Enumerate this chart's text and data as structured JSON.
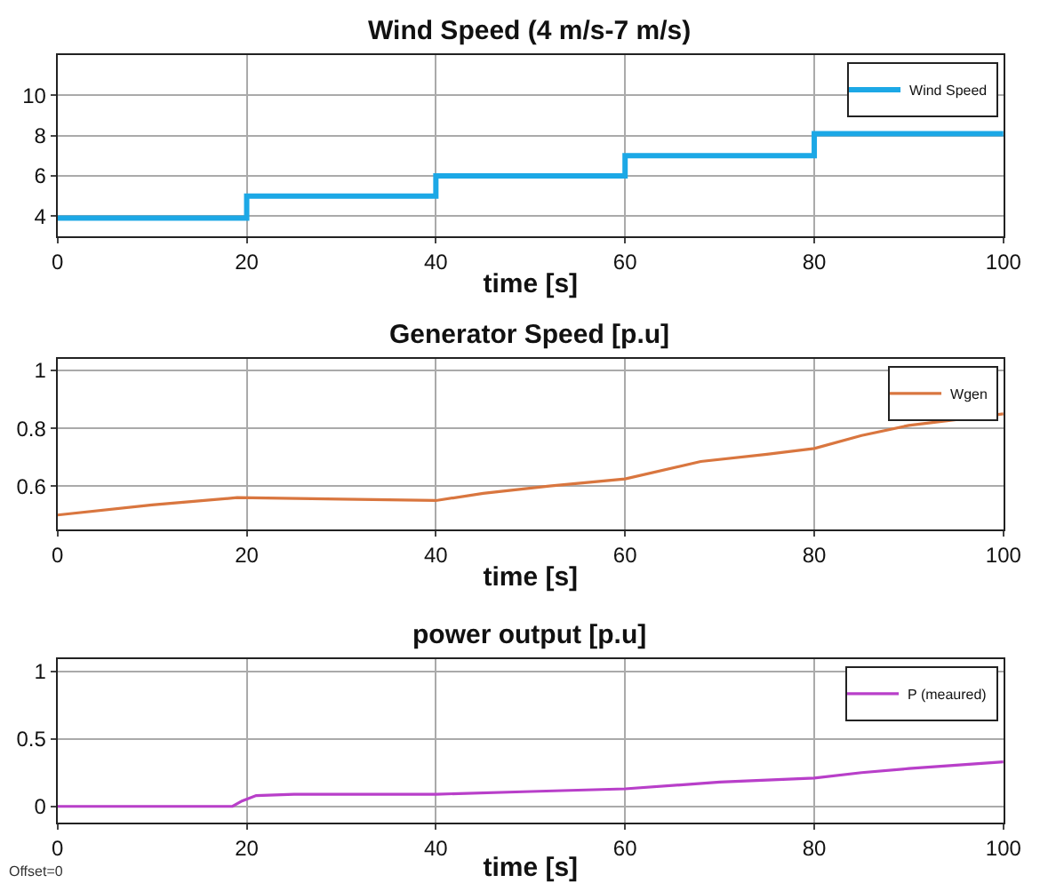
{
  "chart_data": [
    {
      "type": "step",
      "title": "Wind Speed (4 m/s-7 m/s)",
      "xlabel": "time [s]",
      "xlim": [
        0,
        100
      ],
      "xticks": [
        0,
        20,
        40,
        60,
        80,
        100
      ],
      "ylim": [
        3,
        12
      ],
      "yticks": [
        4,
        6,
        8,
        10
      ],
      "grid": true,
      "legend": "top right",
      "series": [
        {
          "name": "Wind Speed",
          "color": "#1ca8e6",
          "x": [
            0,
            20,
            40,
            60,
            80,
            100
          ],
          "values": [
            3.9,
            5,
            6,
            7,
            8.1,
            8.1
          ]
        }
      ]
    },
    {
      "type": "line",
      "title": "Generator Speed [p.u]",
      "xlabel": "time [s]",
      "xlim": [
        0,
        100
      ],
      "xticks": [
        0,
        20,
        40,
        60,
        80,
        100
      ],
      "ylim": [
        0.45,
        1.04
      ],
      "yticks": [
        0.6,
        0.8,
        1
      ],
      "grid": true,
      "legend": "top right",
      "series": [
        {
          "name": "Wgen",
          "color": "#d9763f",
          "x": [
            0,
            10,
            19,
            30,
            40,
            45,
            52,
            60,
            68,
            75,
            80,
            85,
            90,
            95,
            100
          ],
          "values": [
            0.5,
            0.535,
            0.56,
            0.555,
            0.55,
            0.575,
            0.6,
            0.625,
            0.685,
            0.71,
            0.73,
            0.775,
            0.81,
            0.83,
            0.85
          ]
        }
      ]
    },
    {
      "type": "line",
      "title": "power output [p.u]",
      "xlabel": "time [s]",
      "xlim": [
        0,
        100
      ],
      "xticks": [
        0,
        20,
        40,
        60,
        80,
        100
      ],
      "ylim": [
        -0.12,
        1.09
      ],
      "yticks": [
        0,
        0.5,
        1
      ],
      "grid": true,
      "legend": "top right",
      "annotations": [
        "Offset=0"
      ],
      "series": [
        {
          "name": "P (meaured)",
          "color": "#b83fc9",
          "x": [
            0,
            18.5,
            19.5,
            21,
            25,
            40,
            50,
            60,
            70,
            80,
            85,
            90,
            100
          ],
          "values": [
            0,
            0,
            0.04,
            0.08,
            0.09,
            0.09,
            0.11,
            0.13,
            0.18,
            0.21,
            0.25,
            0.28,
            0.33
          ]
        }
      ]
    }
  ]
}
